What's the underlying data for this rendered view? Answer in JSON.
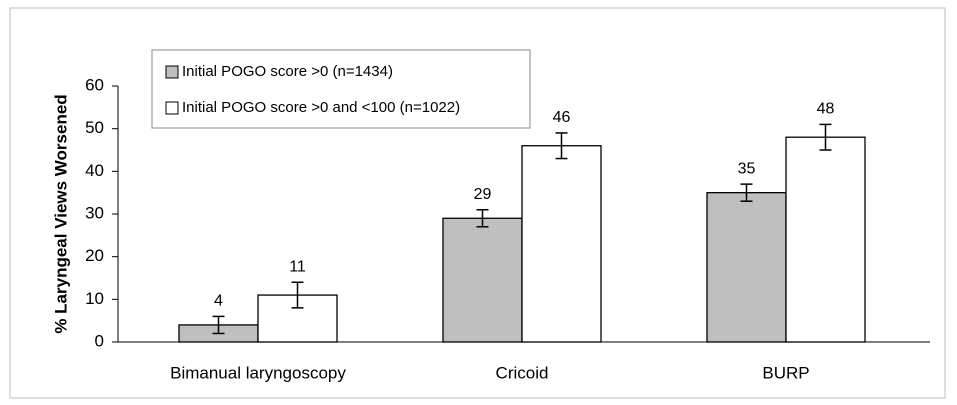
{
  "chart_data": {
    "type": "bar",
    "ylabel": "% Laryngeal Views Worsened",
    "categories": [
      "Bimanual laryngoscopy",
      "Cricoid",
      "BURP"
    ],
    "series": [
      {
        "name": "Initial POGO score >0 (n=1434)",
        "color": "#bfbfbf",
        "values": [
          4,
          29,
          35
        ],
        "errors": [
          2,
          2,
          2
        ]
      },
      {
        "name": "Initial POGO score >0 and <100 (n=1022)",
        "color": "#ffffff",
        "values": [
          11,
          46,
          48
        ],
        "errors": [
          3,
          3,
          3
        ]
      }
    ],
    "ylim": [
      0,
      60
    ],
    "yticks": [
      0,
      10,
      20,
      30,
      40,
      50,
      60
    ],
    "grid": false,
    "legend": "top-left"
  }
}
